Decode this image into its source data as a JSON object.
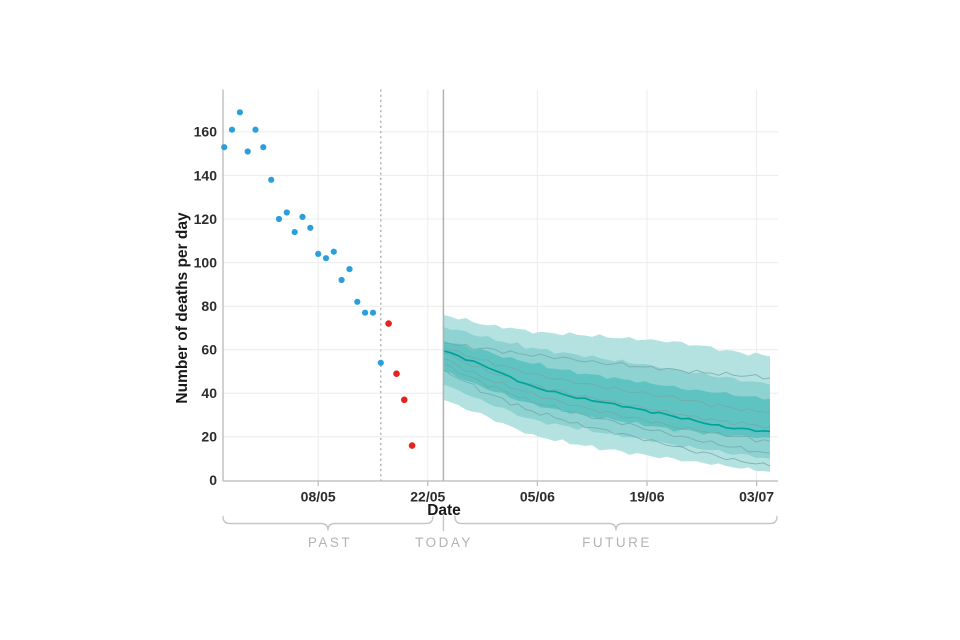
{
  "chart": {
    "y_axis": {
      "title": "Number of deaths per day",
      "tick_values": [
        0,
        20,
        40,
        60,
        80,
        100,
        120,
        140,
        160
      ],
      "max": 180
    },
    "x_axis": {
      "title": "Date",
      "ticks": [
        {
          "label": "08/05",
          "day": 12
        },
        {
          "label": "22/05",
          "day": 26
        },
        {
          "label": "05/06",
          "day": 40
        },
        {
          "label": "19/06",
          "day": 54
        },
        {
          "label": "03/07",
          "day": 68
        }
      ]
    },
    "timeline": {
      "past_label": "PAST",
      "today_label": "TODAY",
      "future_label": "FUTURE"
    }
  },
  "chart_data": {
    "type": "scatter+fan-projection",
    "x_unit": "days (axis labelled with dd/mm dates)",
    "ylim": [
      0,
      180
    ],
    "observed_complete": {
      "name": "past daily deaths (complete data, blue points)",
      "points": [
        [
          0,
          153
        ],
        [
          1,
          161
        ],
        [
          2,
          169
        ],
        [
          3,
          151
        ],
        [
          4,
          161
        ],
        [
          5,
          153
        ],
        [
          6,
          138
        ],
        [
          7,
          120
        ],
        [
          8,
          123
        ],
        [
          9,
          114
        ],
        [
          10,
          121
        ],
        [
          11,
          116
        ],
        [
          12,
          104
        ],
        [
          13,
          102
        ],
        [
          14,
          105
        ],
        [
          15,
          92
        ],
        [
          16,
          97
        ],
        [
          17,
          82
        ],
        [
          18,
          77
        ],
        [
          19,
          77
        ],
        [
          20,
          54
        ]
      ]
    },
    "observed_incomplete": {
      "name": "recent daily deaths (incomplete data, red points)",
      "points": [
        [
          21,
          72
        ],
        [
          22,
          49
        ],
        [
          23,
          37
        ],
        [
          24,
          16
        ]
      ]
    },
    "cutoff_day": 20,
    "today_day": 28,
    "projection": {
      "name": "future projection fan (teal bands)",
      "start_day": 28,
      "end_day": 69.7,
      "control_days": [
        28,
        33,
        39,
        45,
        52,
        58,
        64.5,
        69.7
      ],
      "median": [
        59.5,
        53,
        43.5,
        38,
        33.5,
        29,
        24,
        22.5
      ],
      "bands": {
        "outer_top": [
          76,
          72,
          68.5,
          67,
          65,
          63.5,
          59.5,
          57
        ],
        "mid_top": [
          70.5,
          66,
          61,
          57.5,
          54,
          50.5,
          47,
          44
        ],
        "inner_top": [
          64,
          59.5,
          54,
          49.5,
          46,
          42.5,
          39.5,
          37.5
        ],
        "inner_bottom": [
          50,
          43,
          35,
          30.5,
          26.5,
          23,
          20.5,
          19.5
        ],
        "mid_bottom": [
          44,
          36.5,
          28,
          24,
          20,
          16,
          12.5,
          10
        ],
        "outer_bottom": [
          37,
          30,
          21,
          16.5,
          12.5,
          9.5,
          6.5,
          4
        ]
      },
      "trajectories": [
        [
          63,
          60.5,
          57.5,
          55.5,
          52.5,
          50.5,
          48.5,
          47
        ],
        [
          61,
          55,
          49,
          45,
          41,
          37.5,
          33.5,
          31
        ],
        [
          58.5,
          51,
          44,
          39,
          34.5,
          30.5,
          26.5,
          24.5
        ],
        [
          56,
          47.5,
          40,
          34,
          29,
          24.5,
          20.5,
          18
        ],
        [
          53.5,
          44.5,
          36.5,
          30.5,
          25.5,
          20.5,
          15.5,
          12.5
        ],
        [
          51,
          41,
          32,
          26,
          20.5,
          15,
          10,
          6.5
        ]
      ]
    }
  },
  "colors": {
    "observed_complete": "#2b9fd9",
    "observed_incomplete": "#e6231c",
    "median_line": "#00a29a",
    "band_inner": "#5fc4c1",
    "band_mid": "#8ed3d1",
    "band_outer": "#b4e2e1",
    "trajectory": "#74a8a7",
    "gridline": "#ececec",
    "axis": "#b9b9b9",
    "reference_line": "#a6a6a6",
    "today_line": "#b1b1b1",
    "text_dark": "#262626",
    "text_muted": "#b3b3b3",
    "brace": "#c6c6c6"
  }
}
